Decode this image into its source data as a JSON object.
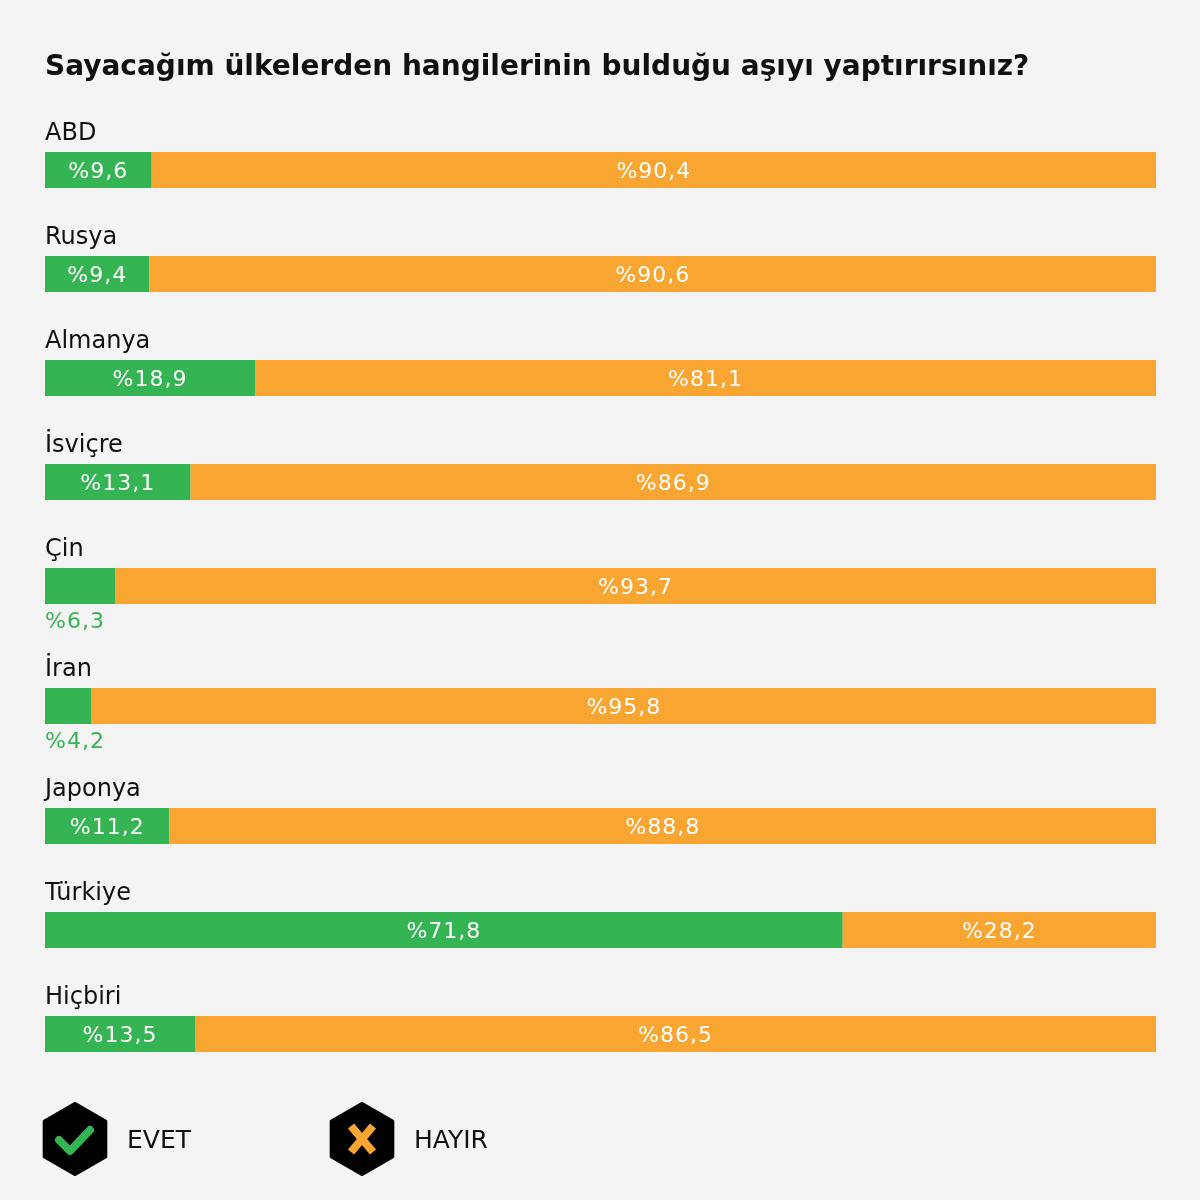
{
  "chart_data": {
    "type": "bar",
    "orientation": "horizontal",
    "stacked": true,
    "title": "Sayacağım ülkelerden hangilerinin bulduğu aşıyı yaptırırsınız?",
    "categories": [
      "ABD",
      "Rusya",
      "Almanya",
      "İsviçre",
      "Çin",
      "İran",
      "Japonya",
      "Türkiye",
      "Hiçbiri"
    ],
    "xlim": [
      0,
      100
    ],
    "tick_labels": "y",
    "legend": "bottom",
    "series": [
      {
        "name": "EVET",
        "color": "#35b454",
        "values": [
          9.6,
          9.4,
          18.9,
          13.1,
          6.3,
          4.2,
          11.2,
          71.8,
          13.5
        ],
        "value_labels": [
          "%9,6",
          "%9,4",
          "%18,9",
          "%13,1",
          "%6,3",
          "%4,2",
          "%11,2",
          "%71,8",
          "%13,5"
        ]
      },
      {
        "name": "HAYIR",
        "color": "#f9a531",
        "values": [
          90.4,
          90.6,
          81.1,
          86.9,
          93.7,
          95.8,
          88.8,
          28.2,
          86.5
        ],
        "value_labels": [
          "%90,4",
          "%90,6",
          "%81,1",
          "%86,9",
          "%93,7",
          "%95,8",
          "%88,8",
          "%28,2",
          "%86,5"
        ]
      }
    ]
  }
}
